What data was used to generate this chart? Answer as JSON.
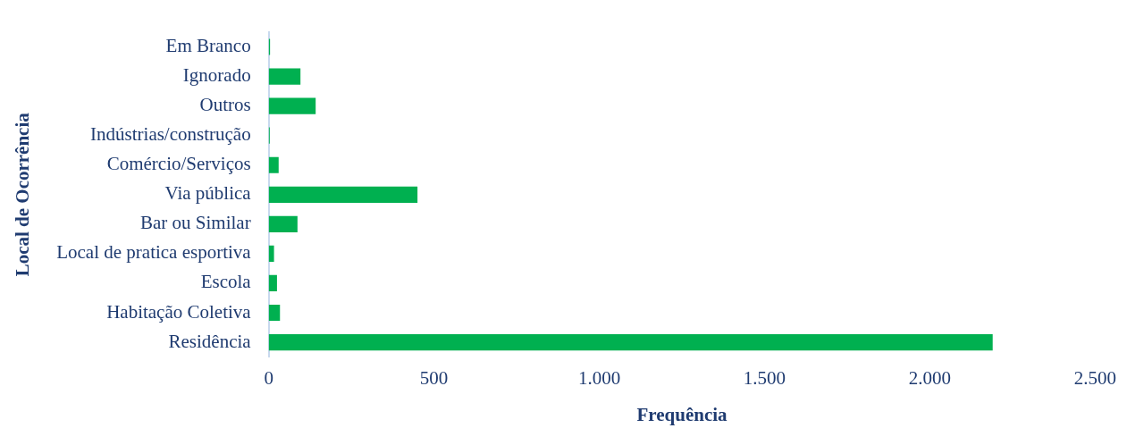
{
  "chart_data": {
    "type": "bar",
    "orientation": "horizontal",
    "xlabel": "Frequência",
    "ylabel": "Local de Ocorrência",
    "categories": [
      "Em Branco",
      "Ignorado",
      "Outros",
      "Indústrias/construção",
      "Comércio/Serviços",
      "Via pública",
      "Bar ou Similar",
      "Local de pratica esportiva",
      "Escola",
      "Habitação Coletiva",
      "Residência"
    ],
    "values": [
      4,
      96,
      142,
      3,
      30,
      450,
      87,
      16,
      25,
      34,
      2190
    ],
    "color": "#00b050",
    "xlim": [
      0,
      2500
    ],
    "xticks": [
      {
        "value": 0,
        "label": "0"
      },
      {
        "value": 500,
        "label": "500"
      },
      {
        "value": 1000,
        "label": "1.000"
      },
      {
        "value": 1500,
        "label": "1.500"
      },
      {
        "value": 2000,
        "label": "2.000"
      },
      {
        "value": 2500,
        "label": "2.500"
      }
    ],
    "grid": false,
    "legend": false
  }
}
